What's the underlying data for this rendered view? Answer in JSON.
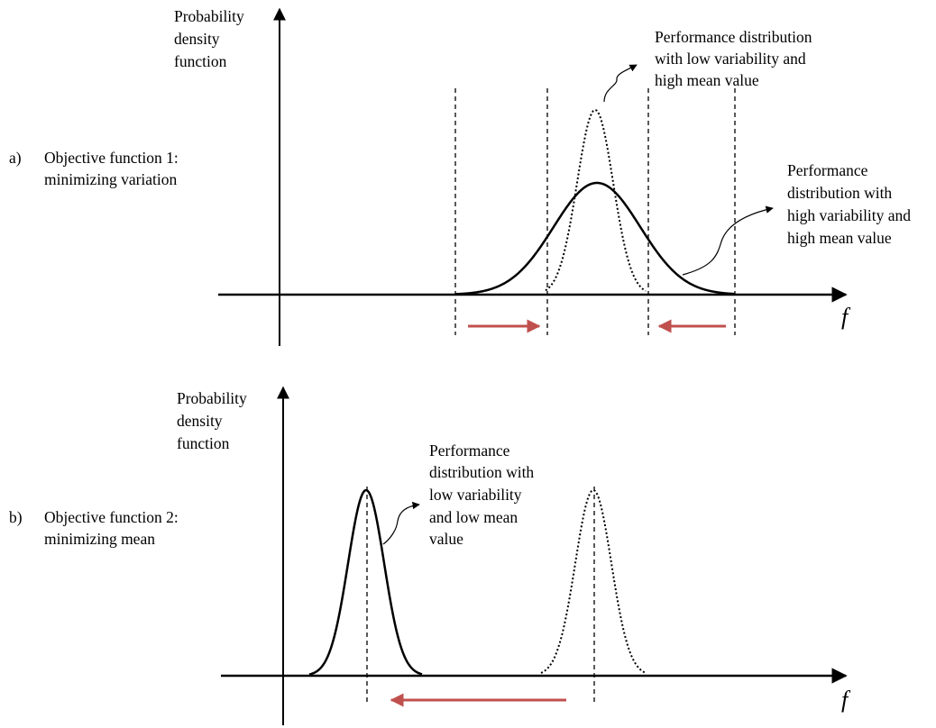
{
  "panel_a": {
    "label": "a)",
    "title_line1": "Objective function 1:",
    "title_line2": "minimizing variation",
    "y_axis_label": [
      "Probability",
      "density",
      "function"
    ],
    "x_axis_symbol": "f",
    "annotation_narrow": [
      "Performance distribution",
      "with low variability and",
      "high mean value"
    ],
    "annotation_wide": [
      "Performance",
      "distribution with",
      "high variability and",
      "high mean value"
    ],
    "arrow_color": "#c0504d"
  },
  "panel_b": {
    "label": "b)",
    "title_line1": "Objective function 2:",
    "title_line2": "minimizing mean",
    "y_axis_label": [
      "Probability",
      "density",
      "function"
    ],
    "x_axis_symbol": "f",
    "annotation_low": [
      "Performance",
      "distribution with",
      "low variability",
      "and low mean",
      "value"
    ],
    "arrow_color": "#c0504d"
  }
}
